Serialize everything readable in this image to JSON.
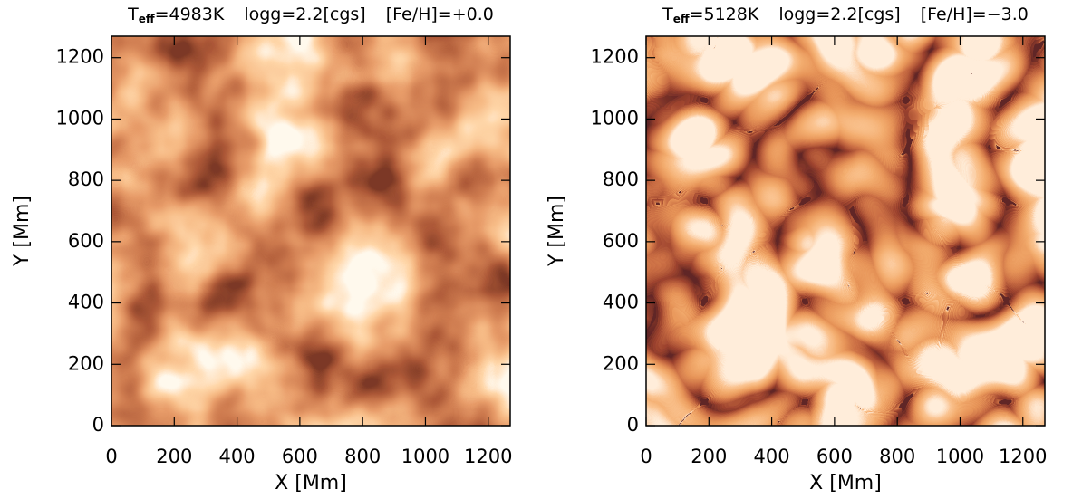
{
  "chart_data": [
    {
      "type": "heatmap",
      "title_parts": [
        "T",
        "eff",
        "=4983K",
        "logg=2.2[cgs]",
        "[Fe/H]=+0.0"
      ],
      "xlabel": "X [Mm]",
      "ylabel": "Y [Mm]",
      "xlim": [
        0,
        1270
      ],
      "ylim": [
        0,
        1270
      ],
      "xticks": [
        0,
        200,
        400,
        600,
        800,
        1000,
        1200
      ],
      "yticks": [
        0,
        200,
        400,
        600,
        800,
        1000,
        1200
      ]
    },
    {
      "type": "heatmap",
      "title_parts": [
        "T",
        "eff",
        "=5128K",
        "logg=2.2[cgs]",
        "[Fe/H]=−3.0"
      ],
      "xlabel": "X [Mm]",
      "ylabel": "Y [Mm]",
      "xlim": [
        0,
        1270
      ],
      "ylim": [
        0,
        1270
      ],
      "xticks": [
        0,
        200,
        400,
        600,
        800,
        1000,
        1200
      ],
      "yticks": [
        0,
        200,
        400,
        600,
        800,
        1000,
        1200
      ]
    }
  ]
}
